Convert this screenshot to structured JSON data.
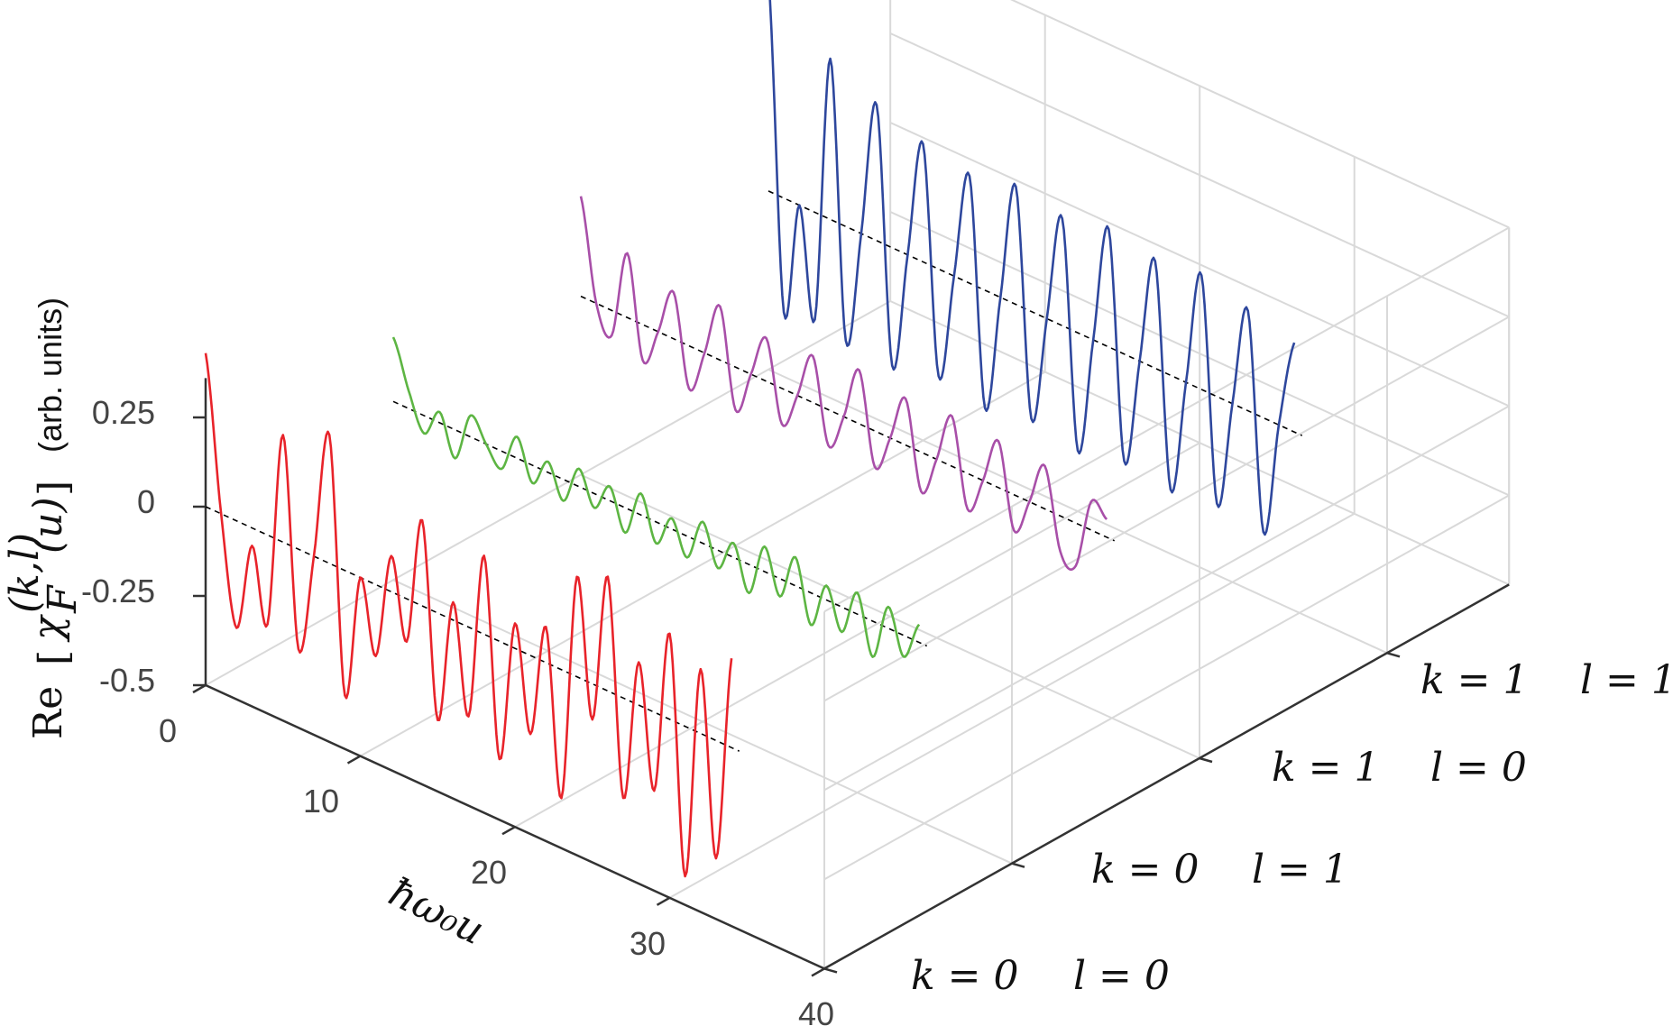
{
  "chart_data": {
    "type": "line",
    "projection": "3d-waterfall",
    "x_axis": {
      "label": "ħω₀u",
      "range": [
        0,
        40
      ],
      "ticks": [
        0,
        10,
        20,
        30,
        40
      ]
    },
    "z_axis": {
      "label_main": "Re",
      "label_symbol": "χ",
      "label_subscript": "F",
      "label_superscript": "(k,l)",
      "label_arg": "(u)",
      "label_units": "(arb. units)",
      "range": [
        -0.5,
        0.5
      ],
      "ticks": [
        "0.25",
        "0",
        "-0.25",
        "-0.5"
      ],
      "tick_values": [
        0.25,
        0,
        -0.25,
        -0.5
      ]
    },
    "y_axis": {
      "categories": [
        {
          "k": "k = 0",
          "l": "l = 0"
        },
        {
          "k": "k = 0",
          "l": "l = 1"
        },
        {
          "k": "k = 1",
          "l": "l = 0"
        },
        {
          "k": "k = 1",
          "l": "l = 1"
        }
      ]
    },
    "grid": true,
    "zero_reference_line": "dashed black",
    "series": [
      {
        "color": "#e8232a",
        "x": [
          0,
          1,
          2,
          3,
          4,
          5,
          6,
          7,
          8,
          9,
          10,
          11,
          12,
          13,
          14,
          15,
          16,
          17,
          18,
          19,
          20,
          21,
          22,
          23,
          24,
          25,
          26,
          27,
          28,
          29,
          30,
          31,
          32,
          33,
          34
        ],
        "y": [
          0.43,
          0.0,
          -0.3,
          -0.05,
          -0.25,
          0.3,
          -0.28,
          0.0,
          0.36,
          -0.35,
          0.0,
          -0.2,
          0.1,
          -0.12,
          0.24,
          -0.3,
          0.05,
          -0.25,
          0.22,
          -0.33,
          0.07,
          -0.22,
          0.1,
          -0.36,
          0.28,
          -0.1,
          0.32,
          -0.28,
          0.12,
          -0.22,
          0.24,
          -0.42,
          0.18,
          -0.33,
          0.25
        ]
      },
      {
        "color": "#5db543",
        "x": [
          0,
          1,
          2,
          3,
          4,
          5,
          6,
          7,
          8,
          9,
          10,
          11,
          12,
          13,
          14,
          15,
          16,
          17,
          18,
          19,
          20,
          21,
          22,
          23,
          24,
          25,
          26,
          27,
          28,
          29,
          30,
          31,
          32,
          33,
          34
        ],
        "y": [
          0.18,
          0.05,
          -0.05,
          0.03,
          -0.08,
          0.06,
          0.0,
          -0.05,
          0.06,
          -0.05,
          0.03,
          -0.06,
          0.05,
          -0.04,
          0.04,
          -0.07,
          0.06,
          -0.06,
          0.03,
          -0.06,
          0.06,
          -0.05,
          0.04,
          -0.08,
          0.07,
          -0.05,
          0.08,
          -0.09,
          0.04,
          -0.07,
          0.06,
          -0.1,
          0.06,
          -0.06,
          0.05
        ]
      },
      {
        "color": "#a84fa8",
        "x": [
          0,
          1,
          2,
          3,
          4,
          5,
          6,
          7,
          8,
          9,
          10,
          11,
          12,
          13,
          14,
          15,
          16,
          17,
          18,
          19,
          20,
          21,
          22,
          23,
          24,
          25,
          26,
          27,
          28,
          29,
          30,
          31,
          32,
          33,
          34
        ],
        "y": [
          0.28,
          0.0,
          -0.07,
          0.18,
          -0.1,
          0.0,
          0.13,
          -0.12,
          0.0,
          0.15,
          -0.12,
          0.0,
          0.12,
          -0.1,
          0.0,
          0.13,
          -0.1,
          0.0,
          0.15,
          -0.1,
          0.0,
          0.13,
          -0.11,
          0.0,
          0.14,
          -0.1,
          0.0,
          0.13,
          -0.1,
          0.0,
          0.12,
          -0.1,
          -0.12,
          0.08,
          0.05
        ]
      },
      {
        "color": "#2e479d",
        "x": [
          0,
          1,
          2,
          3,
          4,
          5,
          6,
          7,
          8,
          9,
          10,
          11,
          12,
          13,
          14,
          15,
          16,
          17,
          18,
          19,
          20,
          21,
          22,
          23,
          24,
          25,
          26,
          27,
          28,
          29,
          30,
          31,
          32,
          33,
          34
        ],
        "y": [
          0.6,
          -0.32,
          0.0,
          -0.3,
          0.45,
          -0.32,
          0.0,
          0.38,
          -0.33,
          0.0,
          0.33,
          -0.3,
          0.0,
          0.3,
          -0.33,
          0.0,
          0.33,
          -0.3,
          0.0,
          0.3,
          -0.33,
          0.0,
          0.33,
          -0.3,
          0.0,
          0.3,
          -0.32,
          0.0,
          0.32,
          -0.3,
          0.0,
          0.28,
          -0.32,
          0.0,
          0.25
        ]
      }
    ]
  }
}
